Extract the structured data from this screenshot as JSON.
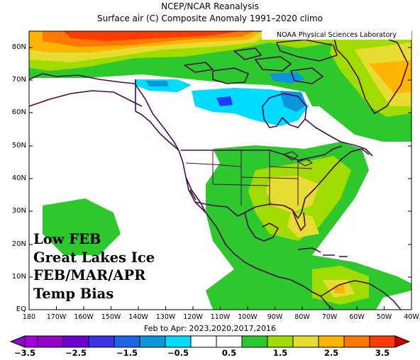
{
  "title": {
    "line1": "NCEP/NCAR Reanalysis",
    "line2": "Surface air (C) Composite Anomaly 1991–2020 climo"
  },
  "credit": "NOAA Physical Sciences Laboratory",
  "lat_labels": [
    "80N",
    "70N",
    "60N",
    "50N",
    "40N",
    "30N",
    "20N",
    "10N",
    "EQ"
  ],
  "lon_labels": [
    "180",
    "170W",
    "160W",
    "150W",
    "140W",
    "130W",
    "120W",
    "110W",
    "100W",
    "90W",
    "80W",
    "70W",
    "60W",
    "50W",
    "40W"
  ],
  "period_label": "Feb to Apr: 2023,2020,2017,2016",
  "colorbar": {
    "labels": [
      "−3.5",
      "−2.5",
      "−1.5",
      "−0.5",
      "0.5",
      "1.5",
      "2.5",
      "3.5"
    ],
    "colors": [
      "#8c00c8",
      "#a300dc",
      "#6e00d2",
      "#1e3cff",
      "#0a96dc",
      "#00dcff",
      "#ffffff",
      "#ffffff",
      "#2dc82d",
      "#a0dc00",
      "#e6dc32",
      "#ffb400",
      "#ff7800",
      "#fa3c00"
    ]
  },
  "overlay_text": [
    "Low FEB",
    "Great Lakes Ice",
    "FEB/MAR/APR",
    "Temp Bias"
  ],
  "map": {
    "domain": "North America surface air temperature anomaly",
    "lat_range": [
      0,
      85
    ],
    "lon_range": [
      -180,
      -40
    ],
    "features": [
      "coastlines",
      "country borders",
      "US state borders",
      "Canadian province borders"
    ]
  }
}
